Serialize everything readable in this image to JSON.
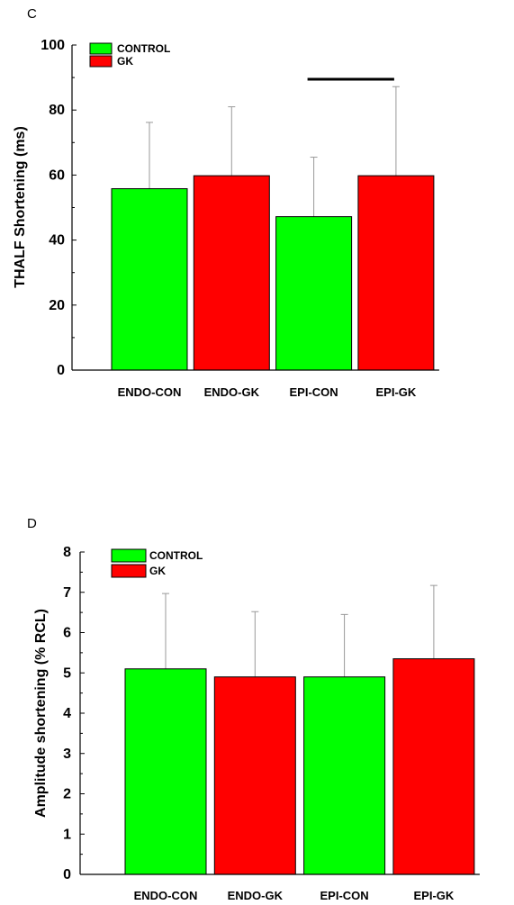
{
  "colors": {
    "control": "#00ff00",
    "gk": "#ff0000",
    "axis": "#000000",
    "error_bar": "#999999"
  },
  "chart_data": [
    {
      "type": "bar",
      "panel_label": "C",
      "ylabel": "THALF Shortening (ms)",
      "xlabel": "",
      "categories": [
        "ENDO-CON",
        "ENDO-GK",
        "EPI-CON",
        "EPI-GK"
      ],
      "values": [
        55.8,
        59.8,
        47.2,
        59.8
      ],
      "error_upper": [
        76.2,
        81.0,
        65.5,
        87.2
      ],
      "group": [
        "CONTROL",
        "GK",
        "CONTROL",
        "GK"
      ],
      "ylim": [
        0,
        100
      ],
      "yticks": [
        "0",
        "20",
        "40",
        "60",
        "80",
        "100"
      ],
      "legend": [
        "CONTROL",
        "GK"
      ],
      "legend_position": "top-left",
      "significance_bracket": [
        "EPI-CON",
        "EPI-GK"
      ],
      "grid": false
    },
    {
      "type": "bar",
      "panel_label": "D",
      "ylabel": "Amplitude shortening (% RCL)",
      "xlabel": "",
      "categories": [
        "ENDO-CON",
        "ENDO-GK",
        "EPI-CON",
        "EPI-GK"
      ],
      "values": [
        5.1,
        4.9,
        4.9,
        5.35
      ],
      "error_upper": [
        6.97,
        6.52,
        6.45,
        7.17
      ],
      "group": [
        "CONTROL",
        "GK",
        "CONTROL",
        "GK"
      ],
      "ylim": [
        0,
        8
      ],
      "yticks": [
        "0",
        "1",
        "2",
        "3",
        "4",
        "5",
        "6",
        "7",
        "8"
      ],
      "legend": [
        "CONTROL",
        "GK"
      ],
      "legend_position": "top-left",
      "grid": false
    }
  ]
}
